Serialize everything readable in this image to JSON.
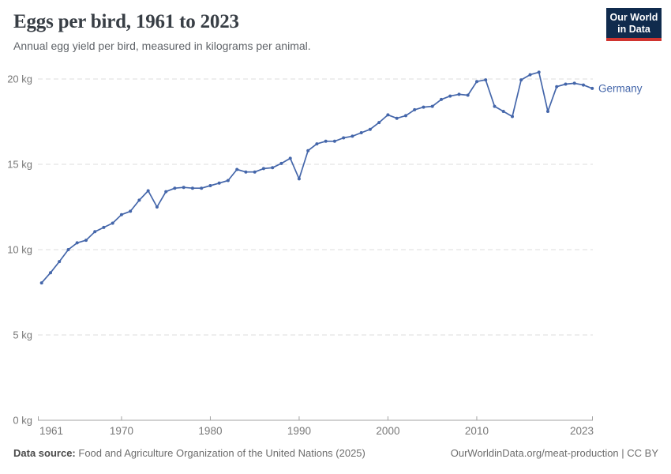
{
  "header": {
    "title": "Eggs per bird, 1961 to 2023",
    "subtitle": "Annual egg yield per bird, measured in kilograms per animal."
  },
  "logo": {
    "line1": "Our World",
    "line2": "in Data",
    "bg_color": "#102b4d",
    "accent_color": "#d0342f"
  },
  "chart_data": {
    "type": "line",
    "title": "Eggs per bird, 1961 to 2023",
    "xlabel": "",
    "ylabel": "kg",
    "unit": "kg",
    "xlim": [
      1961,
      2023
    ],
    "ylim": [
      0,
      20
    ],
    "grid": "horizontal-dashed",
    "legend_position": "end-of-line",
    "colors": {
      "grid": "#dcdcdc",
      "axis": "#a3a3a3",
      "tick_label": "#787878"
    },
    "y_ticks": [
      {
        "value": 0,
        "label": "0 kg"
      },
      {
        "value": 5,
        "label": "5 kg"
      },
      {
        "value": 10,
        "label": "10 kg"
      },
      {
        "value": 15,
        "label": "15 kg"
      },
      {
        "value": 20,
        "label": "20 kg"
      }
    ],
    "x_ticks": [
      {
        "value": 1961,
        "label": "1961"
      },
      {
        "value": 1970,
        "label": "1970"
      },
      {
        "value": 1980,
        "label": "1980"
      },
      {
        "value": 1990,
        "label": "1990"
      },
      {
        "value": 2000,
        "label": "2000"
      },
      {
        "value": 2010,
        "label": "2010"
      },
      {
        "value": 2023,
        "label": "2023"
      }
    ],
    "series": [
      {
        "name": "Germany",
        "color": "#4466aa",
        "x": [
          1961,
          1962,
          1963,
          1964,
          1965,
          1966,
          1967,
          1968,
          1969,
          1970,
          1971,
          1972,
          1973,
          1974,
          1975,
          1976,
          1977,
          1978,
          1979,
          1980,
          1981,
          1982,
          1983,
          1984,
          1985,
          1986,
          1987,
          1988,
          1989,
          1990,
          1991,
          1992,
          1993,
          1994,
          1995,
          1996,
          1997,
          1998,
          1999,
          2000,
          2001,
          2002,
          2003,
          2004,
          2005,
          2006,
          2007,
          2008,
          2009,
          2010,
          2011,
          2012,
          2013,
          2014,
          2015,
          2016,
          2017,
          2018,
          2019,
          2020,
          2021,
          2022,
          2023
        ],
        "values": [
          8.05,
          8.65,
          9.3,
          10.0,
          10.4,
          10.55,
          11.05,
          11.3,
          11.55,
          12.05,
          12.25,
          12.9,
          13.45,
          12.5,
          13.4,
          13.6,
          13.65,
          13.6,
          13.6,
          13.75,
          13.9,
          14.05,
          14.7,
          14.55,
          14.55,
          14.75,
          14.8,
          15.05,
          15.35,
          14.15,
          15.8,
          16.2,
          16.35,
          16.35,
          16.55,
          16.65,
          16.85,
          17.05,
          17.45,
          17.9,
          17.7,
          17.85,
          18.2,
          18.35,
          18.4,
          18.8,
          19.0,
          19.1,
          19.05,
          19.85,
          19.95,
          18.4,
          18.1,
          17.8,
          19.95,
          20.25,
          20.4,
          18.1,
          19.55,
          19.7,
          19.75,
          19.65,
          19.45
        ]
      }
    ]
  },
  "footer": {
    "source_label": "Data source:",
    "source_text": "Food and Agriculture Organization of the United Nations (2025)",
    "attribution": "OurWorldinData.org/meat-production | CC BY"
  }
}
